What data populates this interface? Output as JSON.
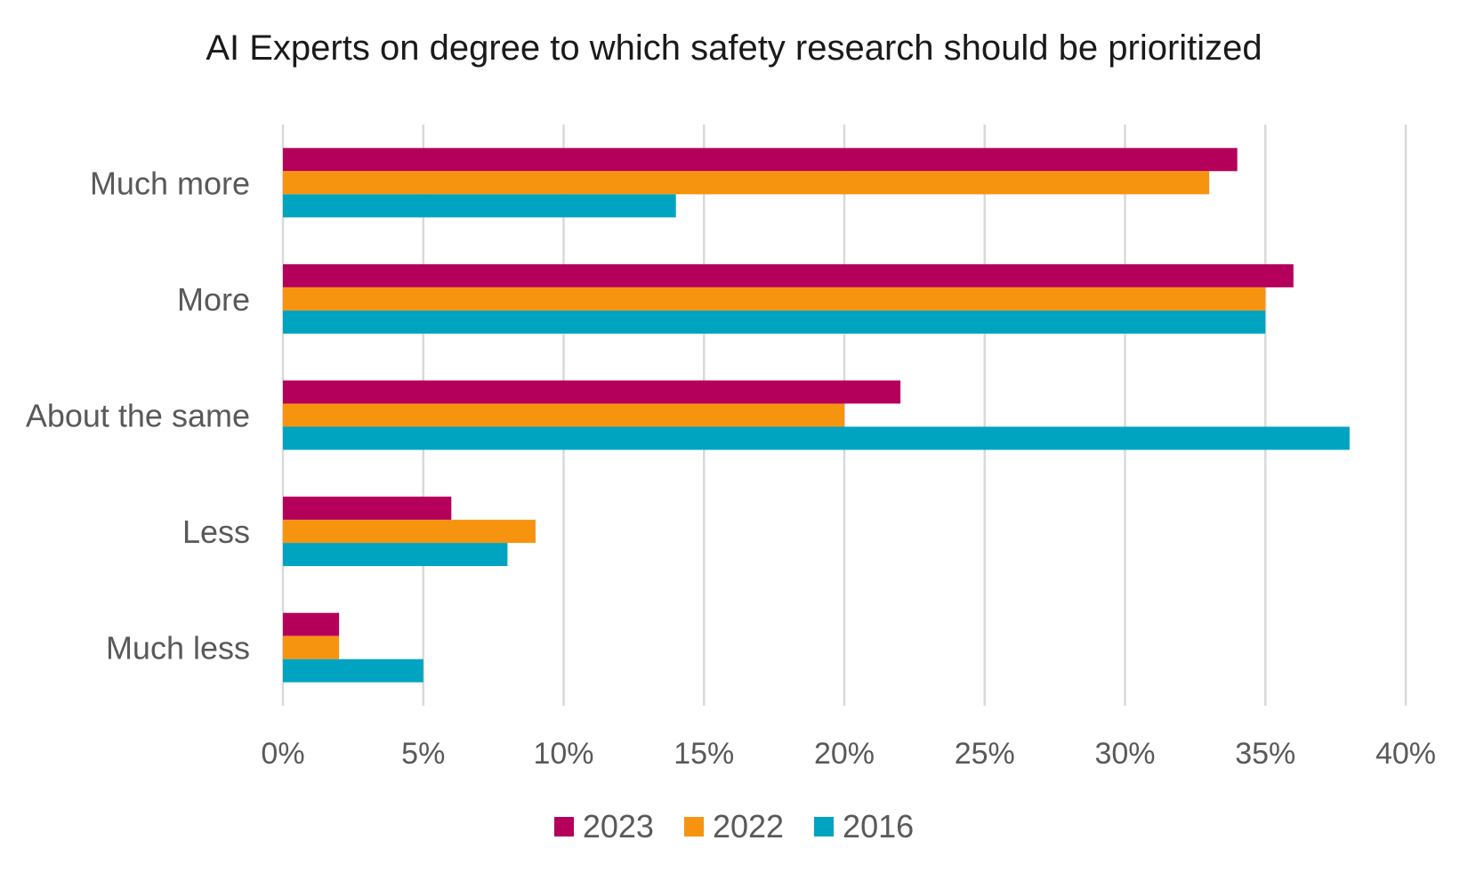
{
  "chart_data": {
    "type": "bar",
    "orientation": "horizontal",
    "title": "AI Experts on degree to which safety research should be prioritized",
    "categories": [
      "Much more",
      "More",
      "About the same",
      "Less",
      "Much less"
    ],
    "series": [
      {
        "name": "2023",
        "color": "#b5005b",
        "values": [
          34,
          36,
          22,
          6,
          2
        ]
      },
      {
        "name": "2022",
        "color": "#f7940f",
        "values": [
          33,
          35,
          20,
          9,
          2
        ]
      },
      {
        "name": "2016",
        "color": "#00a4c0",
        "values": [
          14,
          35,
          38,
          8,
          5
        ]
      }
    ],
    "x_ticks": [
      "0%",
      "5%",
      "10%",
      "15%",
      "20%",
      "25%",
      "30%",
      "35%",
      "40%"
    ],
    "xlim": [
      0,
      40
    ],
    "xlabel": "",
    "ylabel": "",
    "grid": "vertical",
    "legend_position": "bottom"
  }
}
